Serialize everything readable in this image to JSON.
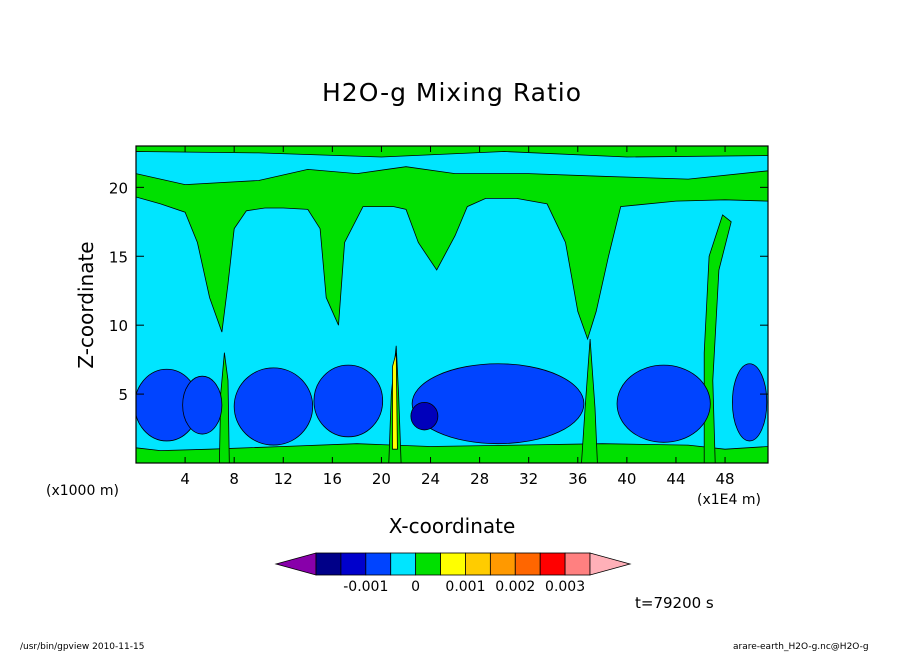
{
  "chart_data": {
    "type": "contour",
    "title": "H2O-g Mixing Ratio",
    "xlabel": "X-coordinate",
    "ylabel": "Z-coordinate",
    "x_unit_label": "(x1000 m)",
    "x_multiplier_label": "(x1E4 m)",
    "xlim": [
      0,
      51.5
    ],
    "ylim": [
      0,
      23
    ],
    "x_ticks": [
      4,
      8,
      12,
      16,
      20,
      24,
      28,
      32,
      36,
      40,
      44,
      48
    ],
    "y_ticks": [
      5,
      10,
      15,
      20
    ],
    "levels": [
      -0.002,
      -0.0015,
      -0.001,
      -0.0005,
      0,
      0.0005,
      0.001,
      0.0015,
      0.002,
      0.0025,
      0.003
    ],
    "colorbar": {
      "colors": [
        "#8800aa",
        "#000088",
        "#0000cc",
        "#0044ff",
        "#00e5ff",
        "#00e000",
        "#ffff00",
        "#ffcc00",
        "#ff9900",
        "#ff6600",
        "#ff0000",
        "#ff8080",
        "#ffb0b8"
      ],
      "tick_labels": [
        "-0.001",
        "0",
        "0.001",
        "0.002",
        "0.003"
      ]
    },
    "features": {
      "background_positive_layer": "green near z=20 and upper edge",
      "mid_layer": "cyan between z=8 and z=19",
      "low_negative_band": "blue between z=1.5 and z=7",
      "plumes_x": [
        7,
        21,
        37,
        47
      ],
      "minimum_near": [
        23.5,
        3.5
      ]
    },
    "time_label": "t=79200 s"
  },
  "footer": {
    "left": "/usr/bin/gpview   2010-11-15",
    "right": "arare-earth_H2O-g.nc@H2O-g"
  }
}
